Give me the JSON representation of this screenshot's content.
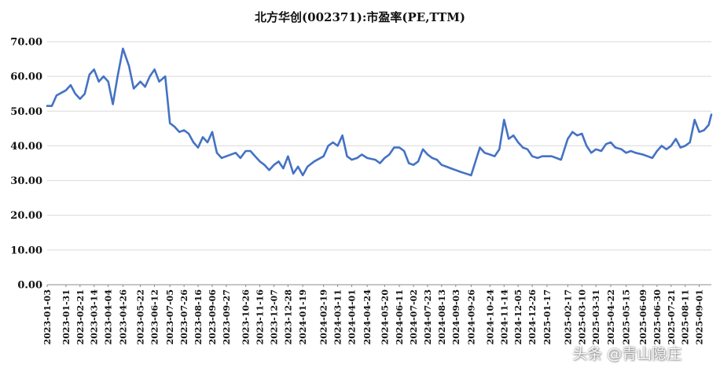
{
  "chart_data": {
    "type": "line",
    "title": "北方华创(002371):市盈率(PE,TTM)",
    "xlabel": "",
    "ylabel": "",
    "ylim": [
      0,
      70
    ],
    "yticks": [
      "0.00",
      "10.00",
      "20.00",
      "30.00",
      "40.00",
      "50.00",
      "60.00",
      "70.00"
    ],
    "grid": true,
    "legend": "none",
    "line_color": "#4472C4",
    "x_tick_labels": [
      "2023-01-03",
      "2023-01-31",
      "2023-02-21",
      "2023-03-14",
      "2023-04-04",
      "2023-04-26",
      "2023-05-22",
      "2023-06-12",
      "2023-07-05",
      "2023-07-26",
      "2023-08-16",
      "2023-09-06",
      "2023-09-27",
      "2023-10-26",
      "2023-11-16",
      "2023-12-07",
      "2023-12-28",
      "2024-01-19",
      "2024-02-19",
      "2024-03-11",
      "2024-04-01",
      "2024-04-24",
      "2024-05-20",
      "2024-06-11",
      "2024-07-02",
      "2024-07-23",
      "2024-08-13",
      "2024-09-03",
      "2024-09-26",
      "2024-10-24",
      "2024-11-14",
      "2024-12-05",
      "2024-12-26",
      "2025-01-17",
      "2025-02-17",
      "2025-03-10",
      "2025-03-31",
      "2025-04-22",
      "2025-05-15",
      "2025-06-09",
      "2025-06-30",
      "2025-07-21",
      "2025-08-11",
      "2025-09-01"
    ],
    "series": [
      {
        "x": [
          "2023-01-03",
          "2023-01-10",
          "2023-01-17",
          "2023-01-31",
          "2023-02-07",
          "2023-02-14",
          "2023-02-21",
          "2023-02-28",
          "2023-03-07",
          "2023-03-14",
          "2023-03-21",
          "2023-03-28",
          "2023-04-04",
          "2023-04-11",
          "2023-04-18",
          "2023-04-26",
          "2023-05-05",
          "2023-05-12",
          "2023-05-22",
          "2023-05-29",
          "2023-06-05",
          "2023-06-12",
          "2023-06-19",
          "2023-06-28",
          "2023-07-05",
          "2023-07-12",
          "2023-07-19",
          "2023-07-26",
          "2023-08-02",
          "2023-08-09",
          "2023-08-16",
          "2023-08-23",
          "2023-08-30",
          "2023-09-06",
          "2023-09-13",
          "2023-09-20",
          "2023-09-27",
          "2023-10-11",
          "2023-10-18",
          "2023-10-26",
          "2023-11-02",
          "2023-11-09",
          "2023-11-16",
          "2023-11-23",
          "2023-11-30",
          "2023-12-07",
          "2023-12-14",
          "2023-12-21",
          "2023-12-28",
          "2024-01-05",
          "2024-01-12",
          "2024-01-19",
          "2024-01-26",
          "2024-02-05",
          "2024-02-19",
          "2024-02-26",
          "2024-03-04",
          "2024-03-11",
          "2024-03-18",
          "2024-03-25",
          "2024-04-01",
          "2024-04-09",
          "2024-04-16",
          "2024-04-24",
          "2024-05-06",
          "2024-05-13",
          "2024-05-20",
          "2024-05-27",
          "2024-06-03",
          "2024-06-11",
          "2024-06-18",
          "2024-06-25",
          "2024-07-02",
          "2024-07-09",
          "2024-07-16",
          "2024-07-23",
          "2024-07-30",
          "2024-08-06",
          "2024-08-13",
          "2024-08-20",
          "2024-08-27",
          "2024-09-03",
          "2024-09-10",
          "2024-09-18",
          "2024-09-26",
          "2024-10-09",
          "2024-10-16",
          "2024-10-24",
          "2024-10-31",
          "2024-11-07",
          "2024-11-14",
          "2024-11-21",
          "2024-11-28",
          "2024-12-05",
          "2024-12-12",
          "2024-12-19",
          "2024-12-26",
          "2025-01-03",
          "2025-01-10",
          "2025-01-17",
          "2025-01-24",
          "2025-02-07",
          "2025-02-17",
          "2025-02-24",
          "2025-03-03",
          "2025-03-10",
          "2025-03-17",
          "2025-03-24",
          "2025-03-31",
          "2025-04-08",
          "2025-04-15",
          "2025-04-22",
          "2025-04-29",
          "2025-05-08",
          "2025-05-15",
          "2025-05-22",
          "2025-05-29",
          "2025-06-09",
          "2025-06-16",
          "2025-06-23",
          "2025-06-30",
          "2025-07-07",
          "2025-07-14",
          "2025-07-21",
          "2025-07-28",
          "2025-08-04",
          "2025-08-11",
          "2025-08-18",
          "2025-08-25",
          "2025-09-01",
          "2025-09-08",
          "2025-09-15",
          "2025-09-19"
        ],
        "values": [
          51.5,
          51.5,
          54.5,
          56.0,
          57.5,
          55.0,
          53.5,
          55.0,
          60.5,
          62.0,
          58.5,
          60.0,
          58.5,
          52.0,
          60.0,
          68.0,
          63.0,
          56.5,
          58.5,
          57.0,
          60.0,
          62.0,
          58.5,
          60.0,
          46.5,
          45.5,
          44.0,
          44.5,
          43.5,
          41.0,
          39.5,
          42.5,
          41.0,
          44.0,
          38.0,
          36.5,
          37.0,
          38.0,
          36.5,
          38.5,
          38.5,
          37.0,
          35.5,
          34.5,
          33.0,
          34.5,
          35.5,
          33.5,
          37.0,
          32.0,
          34.0,
          31.5,
          34.0,
          35.5,
          37.0,
          40.0,
          41.0,
          40.0,
          43.0,
          37.0,
          36.0,
          36.5,
          37.5,
          36.5,
          36.0,
          35.0,
          36.5,
          37.5,
          39.5,
          39.5,
          38.5,
          35.0,
          34.5,
          35.5,
          39.0,
          37.5,
          36.5,
          36.0,
          34.5,
          34.0,
          33.5,
          33.0,
          32.5,
          32.0,
          31.5,
          39.5,
          38.0,
          37.5,
          37.0,
          39.0,
          47.5,
          42.0,
          43.0,
          41.0,
          39.5,
          39.0,
          37.0,
          36.5,
          37.0,
          37.0,
          37.0,
          36.0,
          42.0,
          44.0,
          43.0,
          43.5,
          40.0,
          38.0,
          39.0,
          38.5,
          40.5,
          41.0,
          39.5,
          39.0,
          38.0,
          38.5,
          38.0,
          37.5,
          37.0,
          36.5,
          38.5,
          40.0,
          39.0,
          40.0,
          42.0,
          39.5,
          40.0,
          41.0,
          47.5,
          44.0,
          44.5,
          46.0,
          49.0
        ]
      }
    ]
  },
  "watermark": "头条 @青山隐庄"
}
